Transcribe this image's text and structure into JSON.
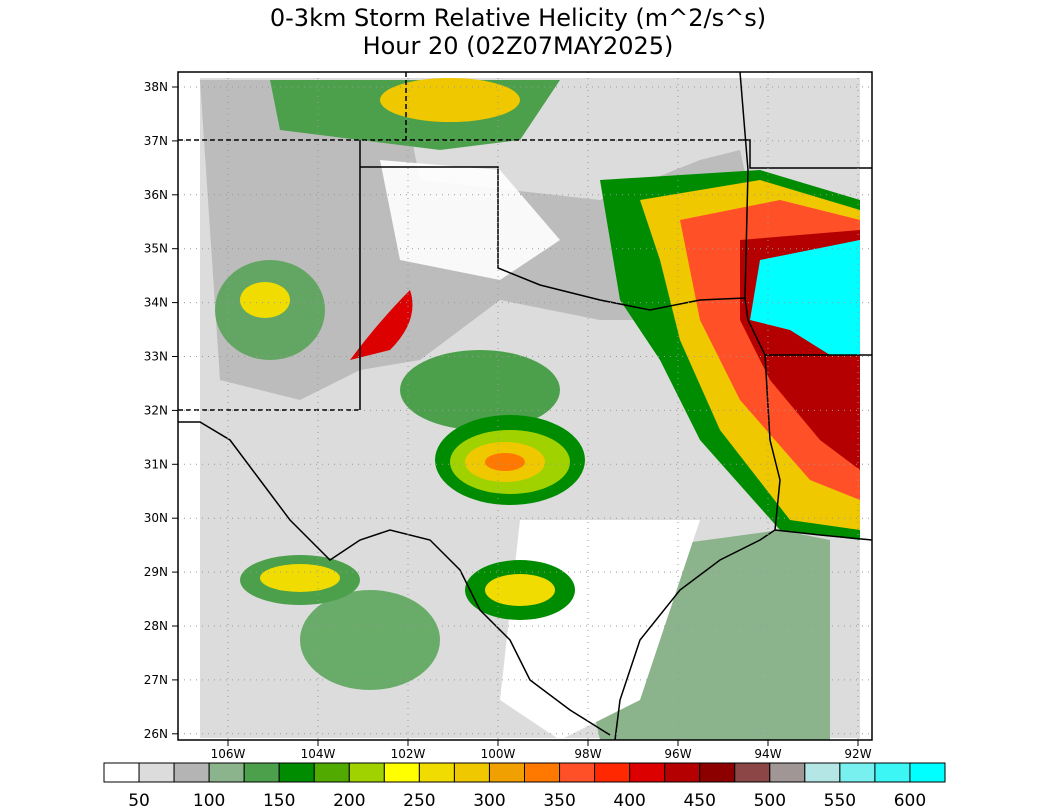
{
  "title": [
    "0-3km Storm Relative Helicity (m^2/s^s)",
    "Hour 20 (02Z07MAY2025)"
  ],
  "lat_labels": [
    "38N",
    "37N",
    "36N",
    "35N",
    "34N",
    "33N",
    "32N",
    "31N",
    "30N",
    "29N",
    "28N",
    "27N",
    "26N"
  ],
  "lon_labels": [
    "106W",
    "104W",
    "102W",
    "100W",
    "98W",
    "96W",
    "94W",
    "92W"
  ],
  "colorbar": {
    "colors": [
      "#ffffff",
      "#dcdcdc",
      "#b4b4b4",
      "#8cb48c",
      "#4ca04c",
      "#008c00",
      "#50aa00",
      "#a0d200",
      "#ffff00",
      "#f0dc00",
      "#f0c800",
      "#f0a000",
      "#ff7800",
      "#ff5028",
      "#ff2800",
      "#dc0000",
      "#b40000",
      "#8c0000",
      "#8c4646",
      "#a09696",
      "#b4e6e6",
      "#78f0f0",
      "#3cf5f5",
      "#00ffff"
    ],
    "labels": [
      "50",
      "100",
      "150",
      "200",
      "250",
      "300",
      "350",
      "400",
      "450",
      "500",
      "550",
      "600"
    ]
  }
}
